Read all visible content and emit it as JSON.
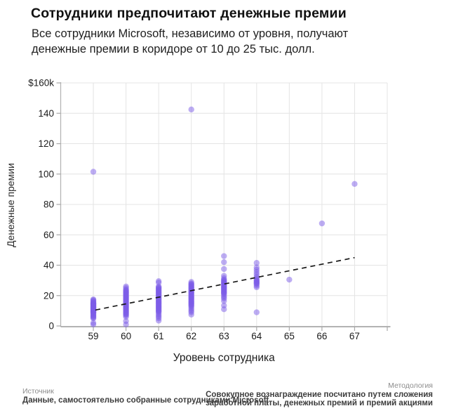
{
  "header": {
    "title": "Сотрудники предпочитают денежные премии",
    "subtitle_line1": "Все сотрудники Microsoft, независимо от уровня, получают",
    "subtitle_line2": "денежные премии в коридоре от 10 до 25 тыс. долл."
  },
  "chart_data": {
    "type": "scatter",
    "xlabel": "Уровень сотрудника",
    "ylabel": "Денежные премии",
    "xlim": [
      58,
      68
    ],
    "ylim": [
      0,
      160
    ],
    "grid": true,
    "x_ticks": [
      59,
      60,
      61,
      62,
      63,
      64,
      65,
      66,
      67
    ],
    "y_ticks": [
      {
        "value": 160,
        "label": "$160k"
      },
      {
        "value": 140,
        "label": "140"
      },
      {
        "value": 120,
        "label": "120"
      },
      {
        "value": 100,
        "label": "100"
      },
      {
        "value": 80,
        "label": "80"
      },
      {
        "value": 60,
        "label": "60"
      },
      {
        "value": 40,
        "label": "40"
      },
      {
        "value": 20,
        "label": "20"
      },
      {
        "value": 0,
        "label": "0"
      }
    ],
    "point_color": "#7c5ce8",
    "point_opacity": 0.5,
    "series": [
      {
        "level": 59,
        "values": [
          101.5,
          17.5,
          17,
          16.5,
          16,
          15.5,
          15,
          15,
          14.5,
          14.5,
          14,
          14,
          13.5,
          13.5,
          13,
          13,
          12.5,
          12.5,
          12,
          12,
          11.5,
          11.5,
          11,
          11,
          10.5,
          10.5,
          10,
          10,
          9.5,
          9.5,
          9,
          9,
          8.5,
          8,
          7.5,
          7,
          6.5,
          6,
          5.5,
          5,
          2,
          1
        ]
      },
      {
        "level": 60,
        "values": [
          26,
          25,
          24,
          23.5,
          23,
          22.5,
          22,
          21.5,
          21,
          20.5,
          20,
          19.5,
          19,
          18.5,
          18,
          17.5,
          17,
          16.5,
          16,
          15.5,
          15,
          14.5,
          14,
          13.5,
          13,
          12.5,
          12,
          11.5,
          11,
          10.5,
          10,
          9.5,
          9,
          8.5,
          8,
          7.5,
          7,
          6,
          3.2,
          1
        ]
      },
      {
        "level": 61,
        "values": [
          29.5,
          28.5,
          26,
          25.5,
          25,
          24.5,
          24,
          23.5,
          23,
          22.5,
          22,
          21.5,
          21,
          20.5,
          20,
          19.5,
          19,
          18.5,
          18,
          17.5,
          17,
          16.5,
          16,
          15.5,
          15,
          14.5,
          14,
          13.5,
          13,
          12.5,
          12,
          11.5,
          11,
          10.5,
          10,
          9.5,
          9,
          8,
          7,
          6,
          5,
          3.5
        ]
      },
      {
        "level": 62,
        "values": [
          142.5,
          29,
          28,
          27.5,
          27,
          26.5,
          26,
          25.5,
          25,
          24.5,
          24,
          23.5,
          23,
          22.5,
          22,
          21.5,
          21,
          20.5,
          20,
          19.5,
          19,
          18.5,
          18,
          17.5,
          17,
          16.5,
          16,
          15.5,
          15,
          14.5,
          14,
          13.5,
          13,
          12,
          11,
          10,
          9,
          7.5
        ]
      },
      {
        "level": 63,
        "values": [
          46,
          42,
          37.5,
          33,
          31.5,
          30.5,
          30,
          29.5,
          29,
          28.5,
          28,
          27.5,
          27,
          26.5,
          26,
          25.5,
          25,
          24.5,
          24,
          23.5,
          23,
          22.5,
          22,
          21.5,
          21,
          20,
          19,
          18,
          16.5,
          13.5,
          11
        ]
      },
      {
        "level": 64,
        "values": [
          41.5,
          38.5,
          37,
          35.5,
          34,
          32.5,
          31.5,
          30.5,
          30,
          29.5,
          29,
          28.5,
          28,
          27.5,
          26.5,
          25.5,
          9
        ]
      },
      {
        "level": 65,
        "values": [
          30.5
        ]
      },
      {
        "level": 66,
        "values": [
          67.5
        ]
      },
      {
        "level": 67,
        "values": [
          93.5
        ]
      }
    ],
    "trendline": {
      "x1": 59,
      "y1": 10.5,
      "x2": 67,
      "y2": 45,
      "style": "dashed",
      "color": "#1a1a1a"
    }
  },
  "footer": {
    "source_label": "Источник",
    "source_text": "Данные, самостоятельно собранные сотрудниками Microsoft",
    "methodology_label": "Методология",
    "methodology_line1": "Совокупное вознаграждение посчитано путем сложения",
    "methodology_line2": "заработной платы, денежных премий и премий акциями"
  }
}
